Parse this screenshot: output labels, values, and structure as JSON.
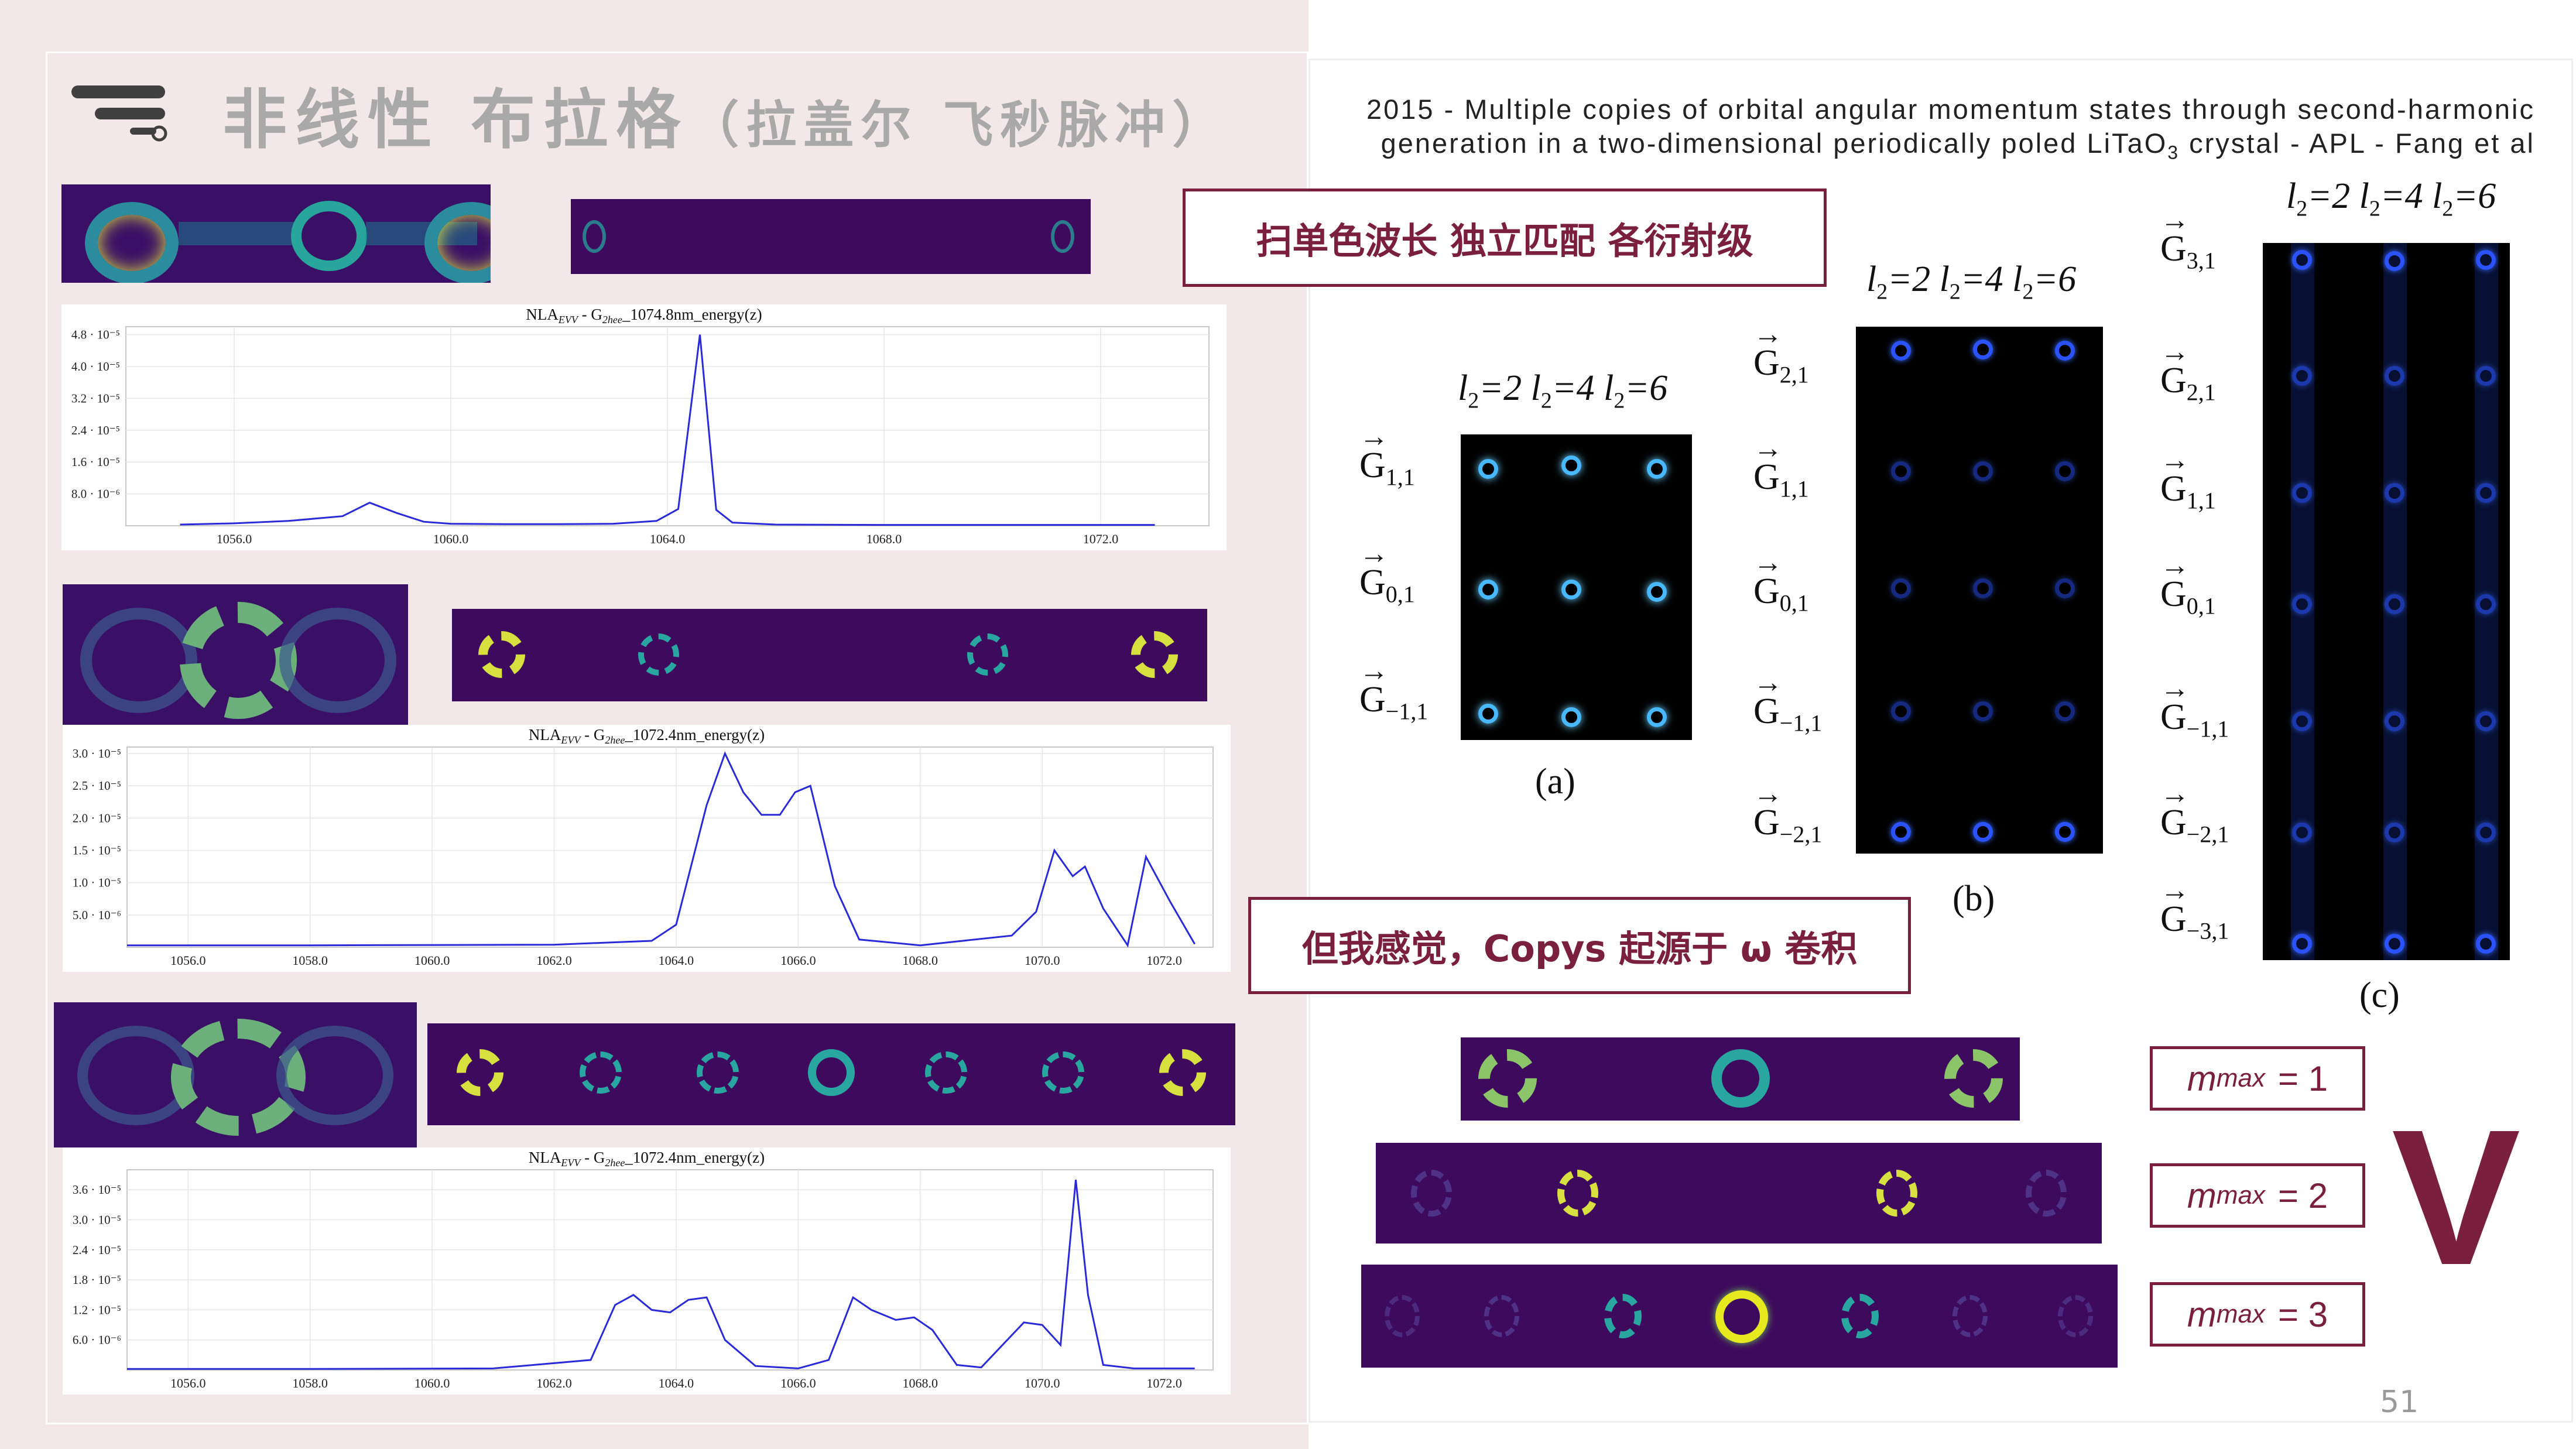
{
  "header": {
    "title_main": "非线性 布拉格",
    "title_sub": "（拉盖尔 飞秒脉冲）",
    "paper_ref_line1": "2015 - Multiple copies of orbital angular momentum states through second-harmonic",
    "paper_ref_line2_pre": "generation in a two-dimensional periodically poled LiTaO",
    "paper_ref_line2_sub": "3",
    "paper_ref_line2_post": " crystal - APL - Fang et al"
  },
  "callouts": {
    "scan": "扫单色波长 独立匹配 各衍射级",
    "convolution": "但我感觉，Copys 起源于 ω 卷积"
  },
  "mmax": [
    {
      "label": "m",
      "sub": "max",
      "eq": "= 1"
    },
    {
      "label": "m",
      "sub": "max",
      "eq": "= 2"
    },
    {
      "label": "m",
      "sub": "max",
      "eq": "= 3"
    }
  ],
  "big_symbol": "V",
  "page_number": "51",
  "figures": {
    "a": {
      "caption": "(a)",
      "l_labels": [
        "=2",
        "=4",
        "=6"
      ],
      "g_labels": [
        {
          "m": "1,1"
        },
        {
          "m": "0,1"
        },
        {
          "m": "−1,1"
        }
      ]
    },
    "b": {
      "caption": "(b)",
      "l_labels": [
        "=2",
        "=4",
        "=6"
      ],
      "g_labels": [
        {
          "m": "2,1"
        },
        {
          "m": "1,1"
        },
        {
          "m": "0,1"
        },
        {
          "m": "−1,1"
        },
        {
          "m": "−2,1"
        }
      ]
    },
    "c": {
      "caption": "(c)",
      "l_labels": [
        "=2",
        "=4",
        "=6"
      ],
      "g_labels": [
        {
          "m": "3,1"
        },
        {
          "m": "2,1"
        },
        {
          "m": "1,1"
        },
        {
          "m": "0,1"
        },
        {
          "m": "−1,1"
        },
        {
          "m": "−2,1"
        },
        {
          "m": "−3,1"
        }
      ]
    }
  },
  "colors": {
    "accent": "#7a1f3d",
    "plot_line": "#2a2ad8",
    "strip_bg": "#3e0a5e",
    "ring": "#2fb1a6",
    "ring_bright": "#e6e820"
  },
  "chart_data": [
    {
      "type": "line",
      "title_pre": "NLA",
      "title_sub1": "EVV",
      "title_mid": " - G",
      "title_sub2": "2hee",
      "title_post": "_1074.8nm_energy(z)",
      "xlim": [
        1054.0,
        1074.0
      ],
      "ylim": [
        0,
        5e-05
      ],
      "x_ticks": [
        "1056.0",
        "1060.0",
        "1064.0",
        "1068.0",
        "1072.0"
      ],
      "x_tick_values": [
        1056,
        1060,
        1064,
        1068,
        1072
      ],
      "y_ticks": [
        "8.0 · 10⁻⁶",
        "1.6 · 10⁻⁵",
        "2.4 · 10⁻⁵",
        "3.2 · 10⁻⁵",
        "4.0 · 10⁻⁵",
        "4.8 · 10⁻⁵"
      ],
      "y_tick_values": [
        8e-06,
        1.6e-05,
        2.4e-05,
        3.2e-05,
        4e-05,
        4.8e-05
      ],
      "grid": true,
      "x": [
        1055.0,
        1056.0,
        1057.0,
        1058.0,
        1058.5,
        1059.0,
        1059.5,
        1060.0,
        1061.0,
        1062.0,
        1063.0,
        1063.8,
        1064.2,
        1064.6,
        1064.9,
        1065.2,
        1066.0,
        1068.0,
        1070.0,
        1072.0,
        1073.0
      ],
      "y": [
        3e-07,
        6e-07,
        1.2e-06,
        2.4e-06,
        5.8e-06,
        3.2e-06,
        1e-06,
        5e-07,
        4e-07,
        4e-07,
        5e-07,
        1.2e-06,
        4.2e-06,
        4.8e-05,
        4e-06,
        8e-07,
        3e-07,
        2e-07,
        2e-07,
        2e-07,
        2e-07
      ]
    },
    {
      "type": "line",
      "title_pre": "NLA",
      "title_sub1": "EVV",
      "title_mid": " - G",
      "title_sub2": "2hee",
      "title_post": "_1072.4nm_energy(z)",
      "xlim": [
        1055.0,
        1072.8
      ],
      "ylim": [
        0,
        3.1e-05
      ],
      "x_ticks": [
        "1056.0",
        "1058.0",
        "1060.0",
        "1062.0",
        "1064.0",
        "1066.0",
        "1068.0",
        "1070.0",
        "1072.0"
      ],
      "x_tick_values": [
        1056,
        1058,
        1060,
        1062,
        1064,
        1066,
        1068,
        1070,
        1072
      ],
      "y_ticks": [
        "5.0 · 10⁻⁶",
        "1.0 · 10⁻⁵",
        "1.5 · 10⁻⁵",
        "2.0 · 10⁻⁵",
        "2.5 · 10⁻⁵",
        "3.0 · 10⁻⁵"
      ],
      "y_tick_values": [
        5e-06,
        1e-05,
        1.5e-05,
        2e-05,
        2.5e-05,
        3e-05
      ],
      "grid": true,
      "x": [
        1055.0,
        1058.0,
        1062.0,
        1063.6,
        1064.0,
        1064.5,
        1064.8,
        1065.1,
        1065.4,
        1065.7,
        1065.95,
        1066.2,
        1066.6,
        1067.0,
        1068.0,
        1069.5,
        1069.9,
        1070.2,
        1070.5,
        1070.7,
        1071.0,
        1071.4,
        1071.7,
        1072.1,
        1072.5
      ],
      "y": [
        3e-07,
        3e-07,
        4e-07,
        1e-06,
        3.5e-06,
        2.2e-05,
        3e-05,
        2.4e-05,
        2.05e-05,
        2.05e-05,
        2.4e-05,
        2.5e-05,
        9.5e-06,
        1.2e-06,
        3e-07,
        1.8e-06,
        5.5e-06,
        1.5e-05,
        1.1e-05,
        1.25e-05,
        6e-06,
        3e-07,
        1.4e-05,
        7e-06,
        5e-07
      ]
    },
    {
      "type": "line",
      "title_pre": "NLA",
      "title_sub1": "EVV",
      "title_mid": " - G",
      "title_sub2": "2hee",
      "title_post": "_1072.4nm_energy(z)",
      "xlim": [
        1055.0,
        1072.8
      ],
      "ylim": [
        0,
        4e-05
      ],
      "x_ticks": [
        "1056.0",
        "1058.0",
        "1060.0",
        "1062.0",
        "1064.0",
        "1066.0",
        "1068.0",
        "1070.0",
        "1072.0"
      ],
      "x_tick_values": [
        1056,
        1058,
        1060,
        1062,
        1064,
        1066,
        1068,
        1070,
        1072
      ],
      "y_ticks": [
        "6.0 · 10⁻⁶",
        "1.2 · 10⁻⁵",
        "1.8 · 10⁻⁵",
        "2.4 · 10⁻⁵",
        "3.0 · 10⁻⁵",
        "3.6 · 10⁻⁵"
      ],
      "y_tick_values": [
        6e-06,
        1.2e-05,
        1.8e-05,
        2.4e-05,
        3e-05,
        3.6e-05
      ],
      "grid": true,
      "x": [
        1055.0,
        1058.0,
        1061.0,
        1062.6,
        1063.0,
        1063.3,
        1063.6,
        1063.9,
        1064.2,
        1064.5,
        1064.8,
        1065.3,
        1066.0,
        1066.5,
        1066.9,
        1067.2,
        1067.6,
        1067.9,
        1068.2,
        1068.6,
        1069.0,
        1069.7,
        1070.0,
        1070.3,
        1070.55,
        1070.75,
        1071.0,
        1071.5,
        1072.5
      ],
      "y": [
        2e-07,
        2e-07,
        3e-07,
        2e-06,
        1.3e-05,
        1.5e-05,
        1.2e-05,
        1.15e-05,
        1.4e-05,
        1.45e-05,
        6e-06,
        8e-07,
        3e-07,
        2e-06,
        1.45e-05,
        1.2e-05,
        1e-05,
        1.05e-05,
        8e-06,
        1e-06,
        5e-07,
        9.5e-06,
        9e-06,
        5e-06,
        3.8e-05,
        1.5e-05,
        1e-06,
        3e-07,
        3e-07
      ]
    }
  ]
}
